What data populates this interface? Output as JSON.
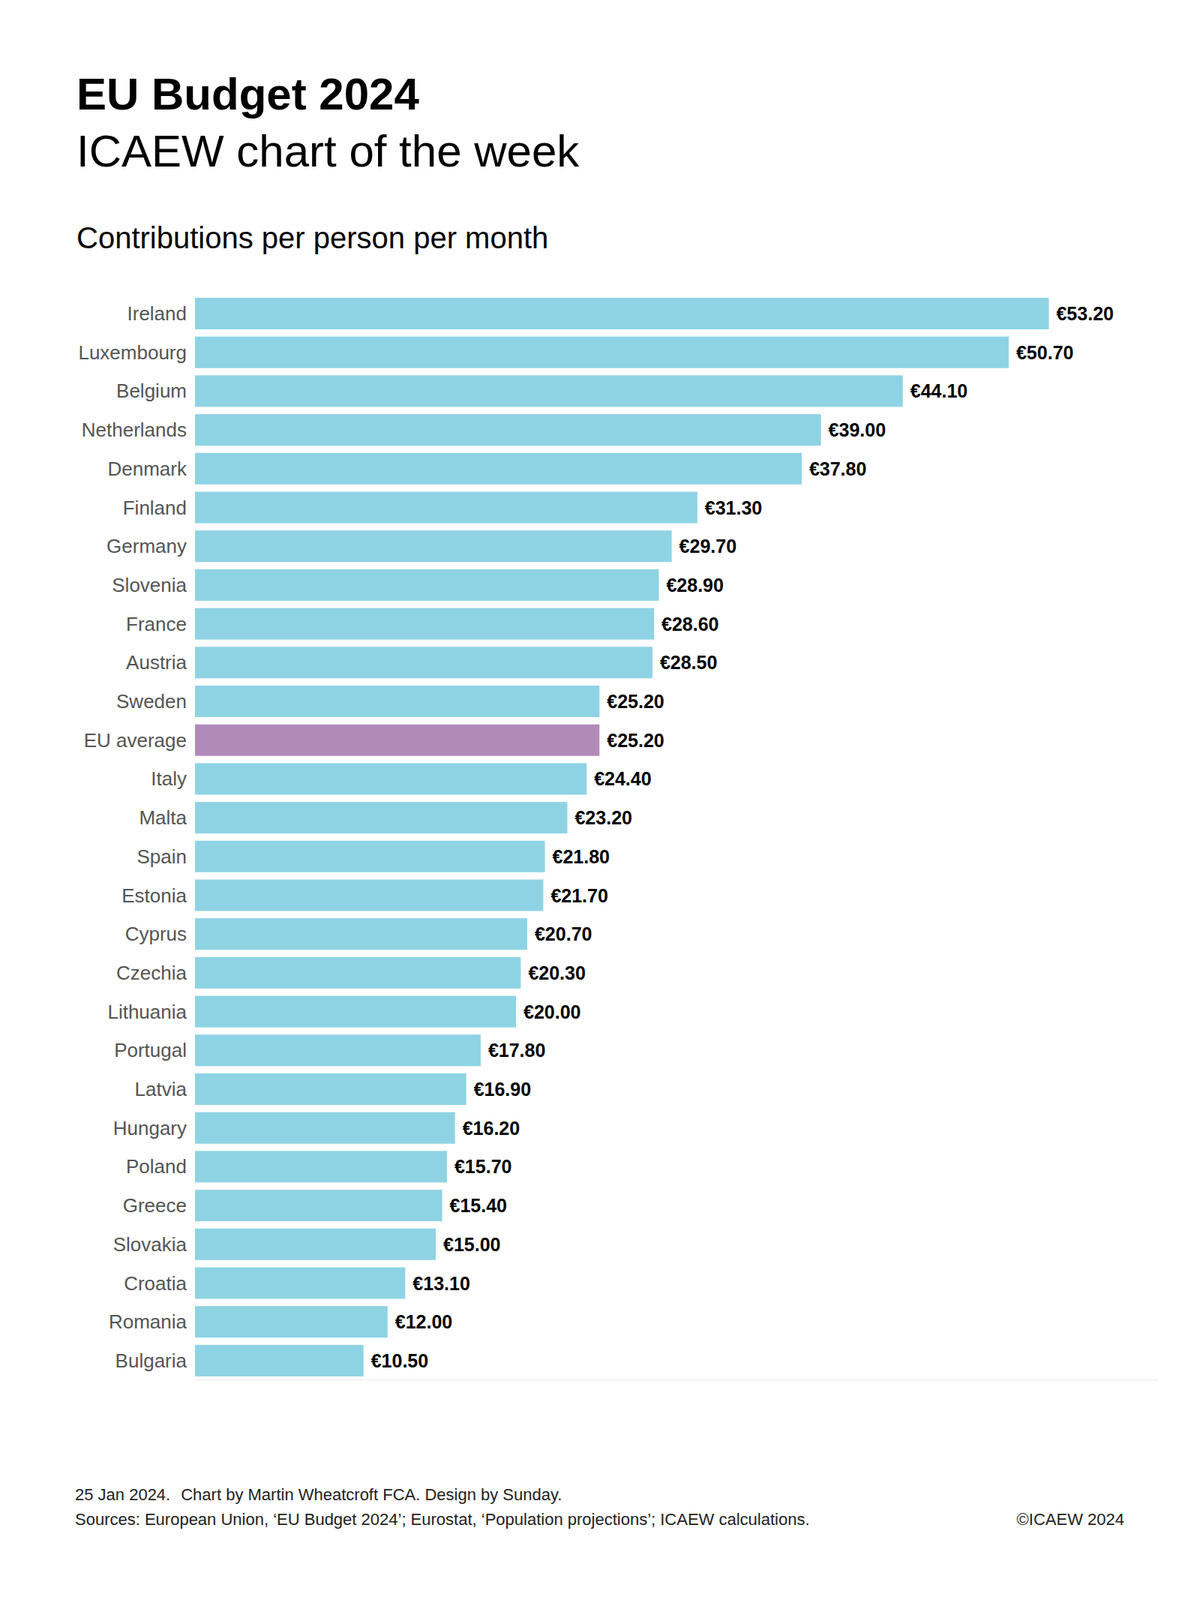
{
  "chart_data": {
    "type": "bar",
    "orientation": "horizontal",
    "title": "EU Budget 2024",
    "subtitle": "ICAEW chart of the week",
    "heading": "Contributions per person per month",
    "date": "25 Jan 2024.",
    "credit": "Chart by Martin Wheatcroft FCA. Design by Sunday.",
    "source": "Sources: European Union, ‘EU Budget 2024’; Eurostat, ‘Population projections’; ICAEW calculations.",
    "copyright": "©ICAEW 2024",
    "categories": [
      "Ireland",
      "Luxembourg",
      "Belgium",
      "Netherlands",
      "Denmark",
      "Finland",
      "Germany",
      "Slovenia",
      "France",
      "Austria",
      "Sweden",
      "EU average",
      "Italy",
      "Malta",
      "Spain",
      "Estonia",
      "Cyprus",
      "Czechia",
      "Lithuania",
      "Portugal",
      "Latvia",
      "Hungary",
      "Poland",
      "Greece",
      "Slovakia",
      "Croatia",
      "Romania",
      "Bulgaria"
    ],
    "values": [
      53.2,
      50.7,
      44.1,
      39.0,
      37.8,
      31.3,
      29.7,
      28.9,
      28.6,
      28.5,
      25.2,
      25.2,
      24.4,
      23.2,
      21.8,
      21.7,
      20.7,
      20.3,
      20.0,
      17.8,
      16.9,
      16.2,
      15.7,
      15.4,
      15.0,
      13.1,
      12.0,
      10.5
    ],
    "value_labels": [
      "€53.20",
      "€50.70",
      "€44.10",
      "€39.00",
      "€37.80",
      "€31.30",
      "€29.70",
      "€28.90",
      "€28.60",
      "€28.50",
      "€25.20",
      "€25.20",
      "€24.40",
      "€23.20",
      "€21.80",
      "€21.70",
      "€20.70",
      "€20.30",
      "€20.00",
      "€17.80",
      "€16.90",
      "€16.20",
      "€15.70",
      "€15.40",
      "€15.00",
      "€13.10",
      "€12.00",
      "€10.50"
    ],
    "colors": [
      "#8ed3e4",
      "#8ed3e4",
      "#8ed3e4",
      "#8ed3e4",
      "#8ed3e4",
      "#8ed3e4",
      "#8ed3e4",
      "#8ed3e4",
      "#8ed3e4",
      "#8ed3e4",
      "#8ed3e4",
      "#b28aba",
      "#8ed3e4",
      "#8ed3e4",
      "#8ed3e4",
      "#8ed3e4",
      "#8ed3e4",
      "#8ed3e4",
      "#8ed3e4",
      "#8ed3e4",
      "#8ed3e4",
      "#8ed3e4",
      "#8ed3e4",
      "#8ed3e4",
      "#8ed3e4",
      "#8ed3e4",
      "#8ed3e4",
      "#8ed3e4"
    ],
    "xlim": [
      0,
      60
    ],
    "data_labels": true,
    "tick_labels": "y",
    "grid": false
  }
}
